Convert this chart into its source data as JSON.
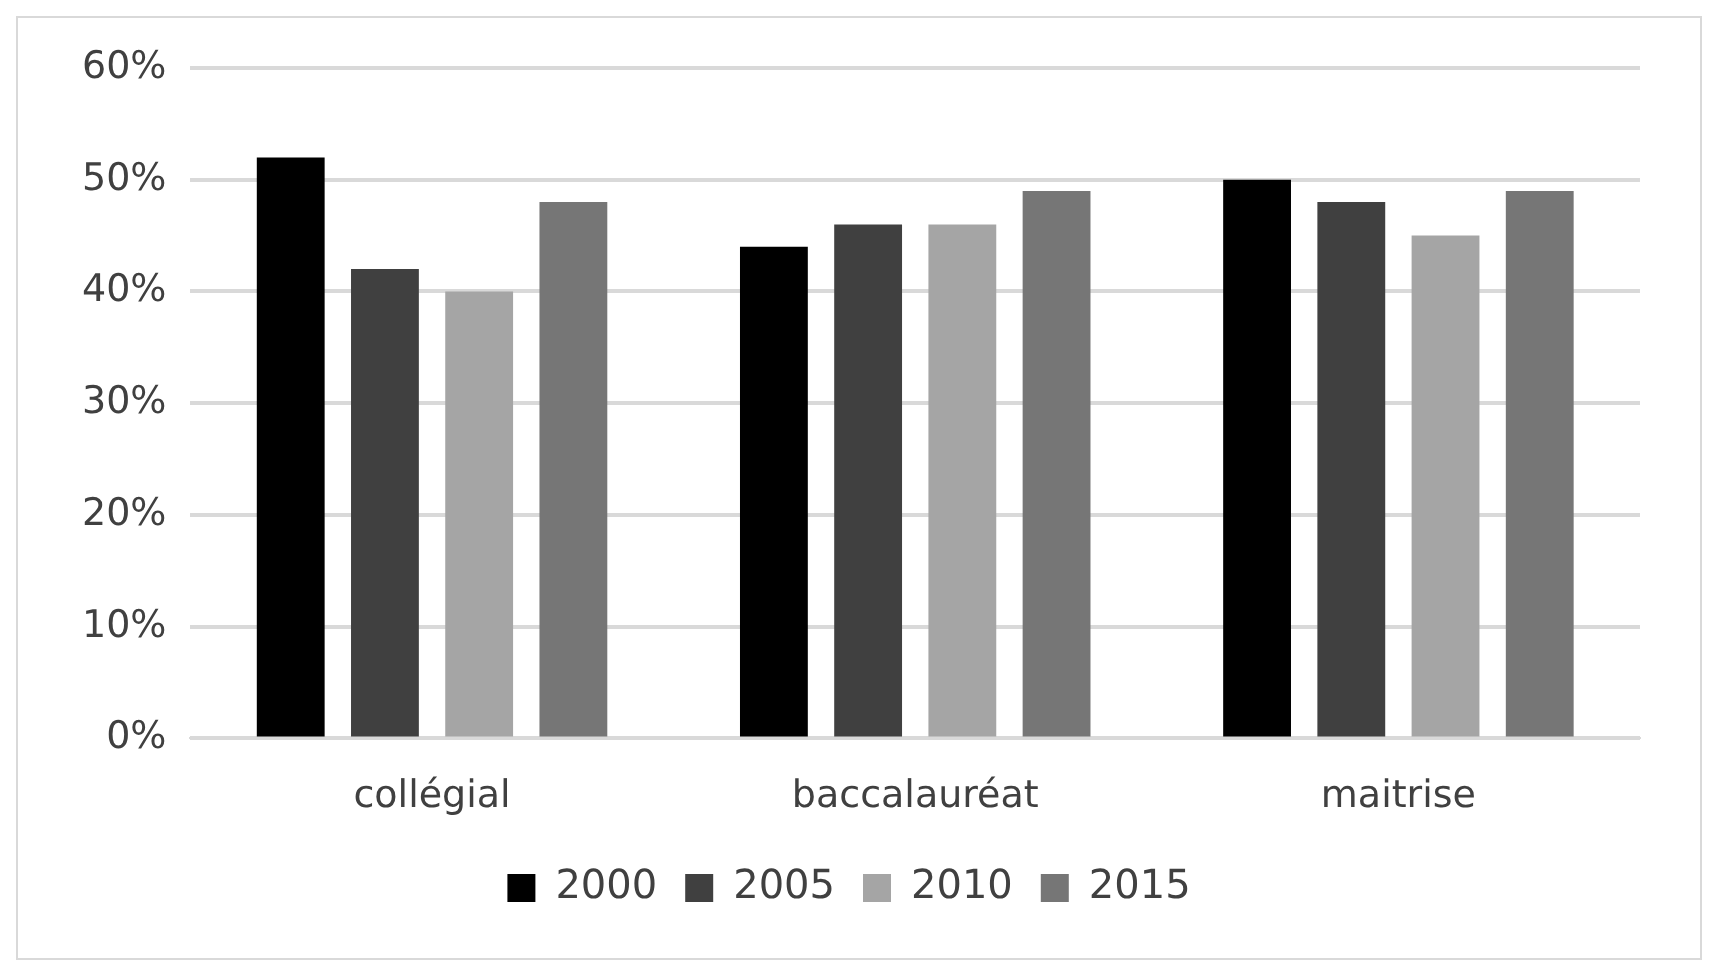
{
  "chart_data": {
    "type": "bar",
    "categories": [
      "collégial",
      "baccalauréat",
      "maitrise"
    ],
    "series": [
      {
        "name": "2000",
        "color": "#000000",
        "values": [
          52,
          44,
          50
        ]
      },
      {
        "name": "2005",
        "color": "#404040",
        "values": [
          42,
          46,
          48
        ]
      },
      {
        "name": "2010",
        "color": "#a5a5a5",
        "values": [
          40,
          46,
          45
        ]
      },
      {
        "name": "2015",
        "color": "#767676",
        "values": [
          48,
          49,
          49
        ]
      }
    ],
    "ylim": [
      0,
      60
    ],
    "yticks": [
      {
        "value": 0,
        "label": "0%"
      },
      {
        "value": 10,
        "label": "10%"
      },
      {
        "value": 20,
        "label": "20%"
      },
      {
        "value": 30,
        "label": "30%"
      },
      {
        "value": 40,
        "label": "40%"
      },
      {
        "value": 50,
        "label": "50%"
      },
      {
        "value": 60,
        "label": "60%"
      }
    ],
    "grid": "y",
    "legend": "bottom"
  }
}
